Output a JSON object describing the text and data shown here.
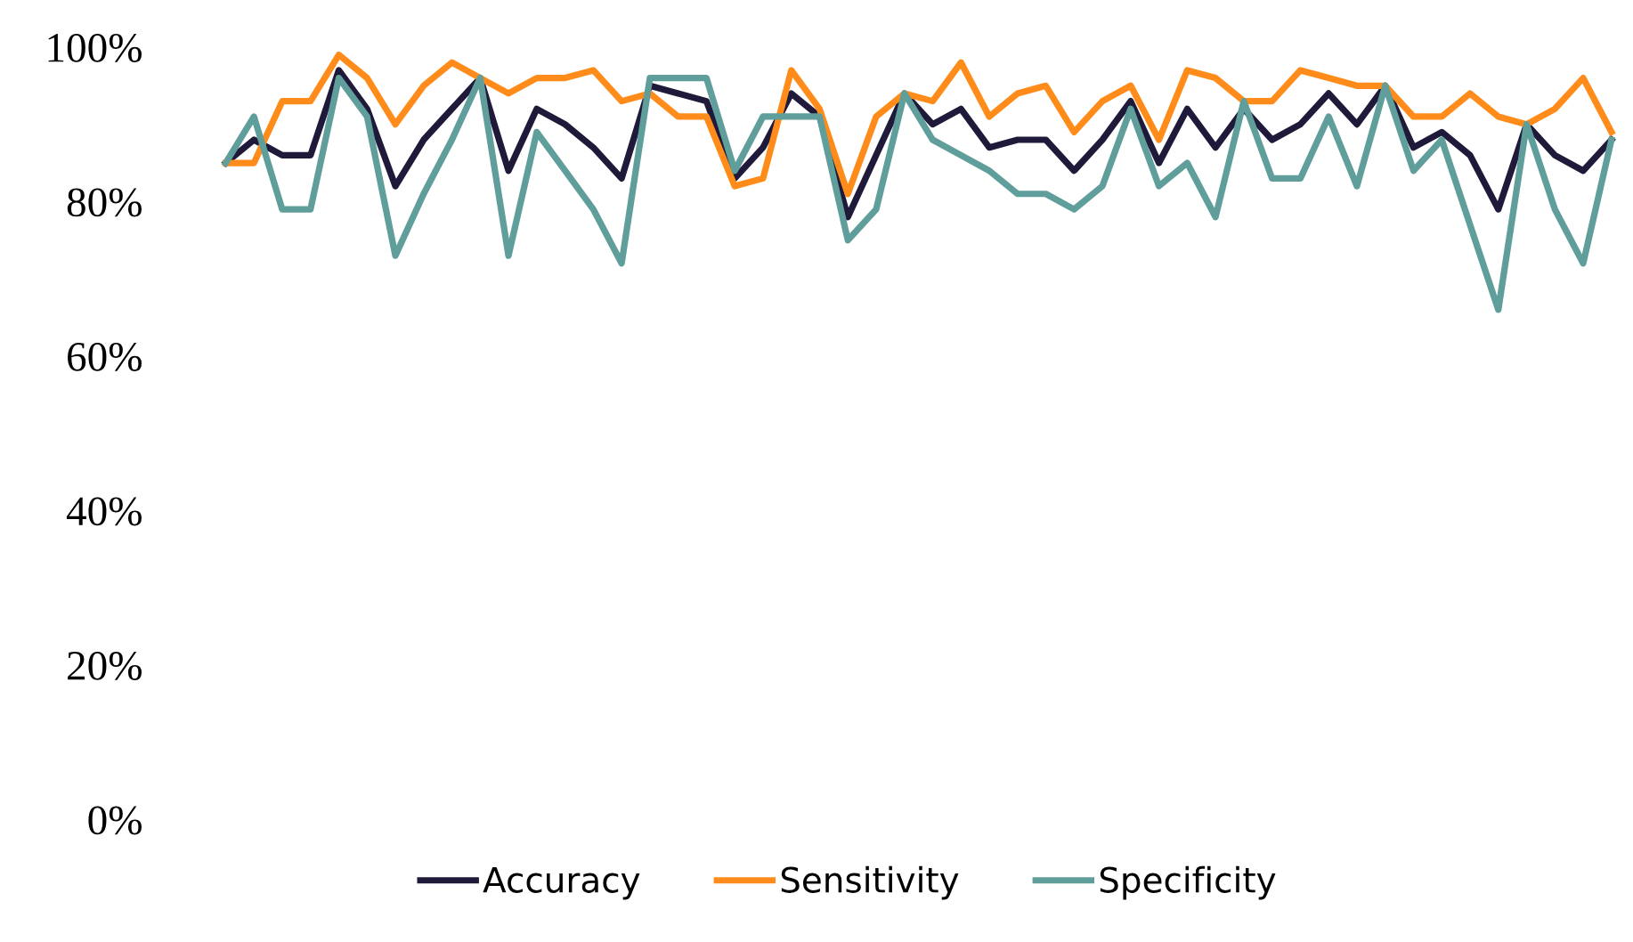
{
  "chart_data": {
    "type": "line",
    "categories": [
      null,
      null,
      null,
      null,
      null,
      null,
      null,
      null,
      null,
      null,
      null,
      null,
      null,
      null,
      null,
      null,
      null,
      null,
      null,
      null,
      null,
      null,
      null,
      null,
      null,
      null,
      null,
      null,
      null,
      null,
      null,
      null,
      null,
      null,
      null,
      null,
      null,
      null,
      null,
      null,
      null,
      null,
      null,
      null,
      null,
      null,
      null,
      null,
      null,
      null
    ],
    "series": [
      {
        "name": "Accuracy",
        "color": "#1f1a3a",
        "values": [
          85,
          88,
          86,
          86,
          97,
          92,
          82,
          88,
          92,
          96,
          84,
          92,
          90,
          87,
          83,
          95,
          94,
          93,
          83,
          87,
          94,
          91,
          78,
          86,
          94,
          90,
          92,
          87,
          88,
          88,
          84,
          88,
          93,
          85,
          92,
          87,
          92,
          88,
          90,
          94,
          90,
          95,
          87,
          89,
          86,
          79,
          90,
          86,
          84,
          88
        ]
      },
      {
        "name": "Sensitivity",
        "color": "#ff8c1a",
        "values": [
          85,
          85,
          93,
          93,
          99,
          96,
          90,
          95,
          98,
          96,
          94,
          96,
          96,
          97,
          93,
          94,
          91,
          91,
          82,
          83,
          97,
          92,
          81,
          91,
          94,
          93,
          98,
          91,
          94,
          95,
          89,
          93,
          95,
          88,
          97,
          96,
          93,
          93,
          97,
          96,
          95,
          95,
          91,
          91,
          94,
          91,
          90,
          92,
          96,
          89
        ]
      },
      {
        "name": "Specificity",
        "color": "#5f9e9a",
        "values": [
          85,
          91,
          79,
          79,
          96,
          91,
          73,
          81,
          88,
          96,
          73,
          89,
          84,
          79,
          72,
          96,
          96,
          96,
          84,
          91,
          91,
          91,
          75,
          79,
          94,
          88,
          86,
          84,
          81,
          81,
          79,
          82,
          92,
          82,
          85,
          78,
          93,
          83,
          83,
          91,
          82,
          95,
          84,
          88,
          77,
          66,
          90,
          79,
          72,
          88
        ]
      }
    ],
    "ylim": [
      0,
      100
    ],
    "yticks": [
      {
        "value": 0,
        "label": "0%"
      },
      {
        "value": 20,
        "label": "20%"
      },
      {
        "value": 40,
        "label": "40%"
      },
      {
        "value": 60,
        "label": "60%"
      },
      {
        "value": 80,
        "label": "80%"
      },
      {
        "value": 100,
        "label": "100%"
      }
    ],
    "grid": false,
    "legend": "bottom",
    "marker": "none",
    "line_style": "solid",
    "tick_labels": "y"
  }
}
